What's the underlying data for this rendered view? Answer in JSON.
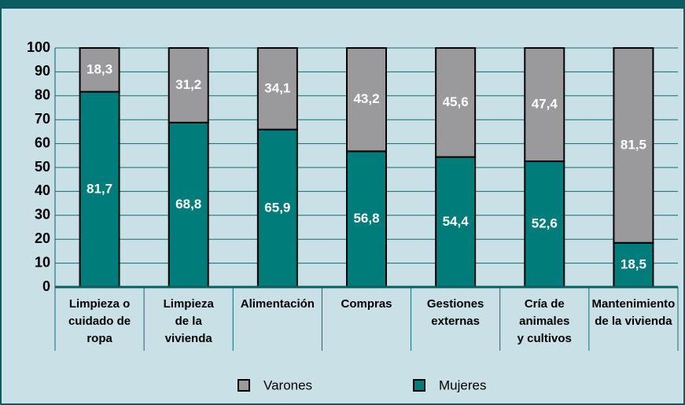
{
  "chart_data": {
    "type": "stacked_bar",
    "categories": [
      [
        "Limpieza o",
        "cuidado de",
        "ropa"
      ],
      [
        "Limpieza",
        "de la",
        "vivienda"
      ],
      [
        "Alimentación"
      ],
      [
        "Compras"
      ],
      [
        "Gestiones",
        "externas"
      ],
      [
        "Cría de",
        "animales",
        "y cultivos"
      ],
      [
        "Mantenimiento",
        "de la vivienda"
      ]
    ],
    "series": [
      {
        "name": "Mujeres",
        "color": "#007d7b",
        "values": [
          81.7,
          68.8,
          65.9,
          56.8,
          54.4,
          52.6,
          18.5
        ],
        "value_labels": [
          "81,7",
          "68,8",
          "65,9",
          "56,8",
          "54,4",
          "52,6",
          "18,5"
        ]
      },
      {
        "name": "Varones",
        "color": "#9a9a9c",
        "values": [
          18.3,
          31.2,
          34.1,
          43.2,
          45.6,
          47.4,
          81.5
        ],
        "value_labels": [
          "18,3",
          "31,2",
          "34,1",
          "43,2",
          "45,6",
          "47,4",
          "81,5"
        ]
      }
    ],
    "legend_order": [
      1,
      0
    ],
    "ylim": [
      0,
      100
    ],
    "yticks": [
      0,
      10,
      20,
      30,
      40,
      50,
      60,
      70,
      80,
      90,
      100
    ],
    "grid": true
  }
}
